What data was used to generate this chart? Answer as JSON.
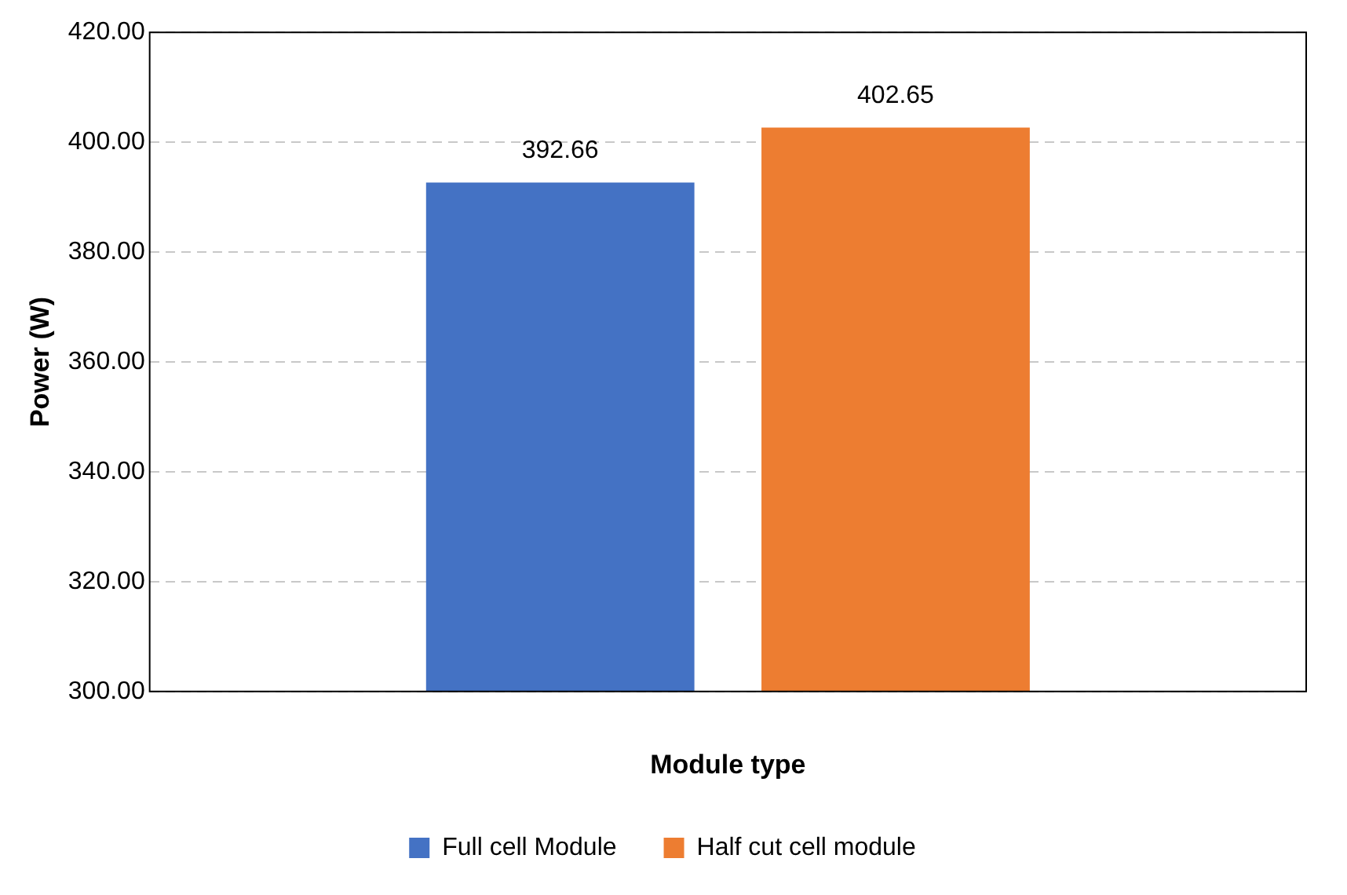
{
  "chart_data": {
    "type": "bar",
    "xlabel": "Module type",
    "ylabel": "Power (W)",
    "categories": [
      null
    ],
    "series": [
      {
        "name": "Full cell Module",
        "color": "#4472c4",
        "values": [
          392.66
        ]
      },
      {
        "name": "Half cut cell module",
        "color": "#ed7d31",
        "values": [
          402.65
        ]
      }
    ],
    "ylim": [
      300,
      420
    ],
    "yticks": [
      {
        "value": 300,
        "label": "300.00"
      },
      {
        "value": 320,
        "label": "320.00"
      },
      {
        "value": 340,
        "label": "340.00"
      },
      {
        "value": 360,
        "label": "360.00"
      },
      {
        "value": 380,
        "label": "380.00"
      },
      {
        "value": 400,
        "label": "400.00"
      },
      {
        "value": 420,
        "label": "420.00"
      }
    ],
    "grid": "y",
    "legend": "bottom",
    "data_labels": true
  }
}
